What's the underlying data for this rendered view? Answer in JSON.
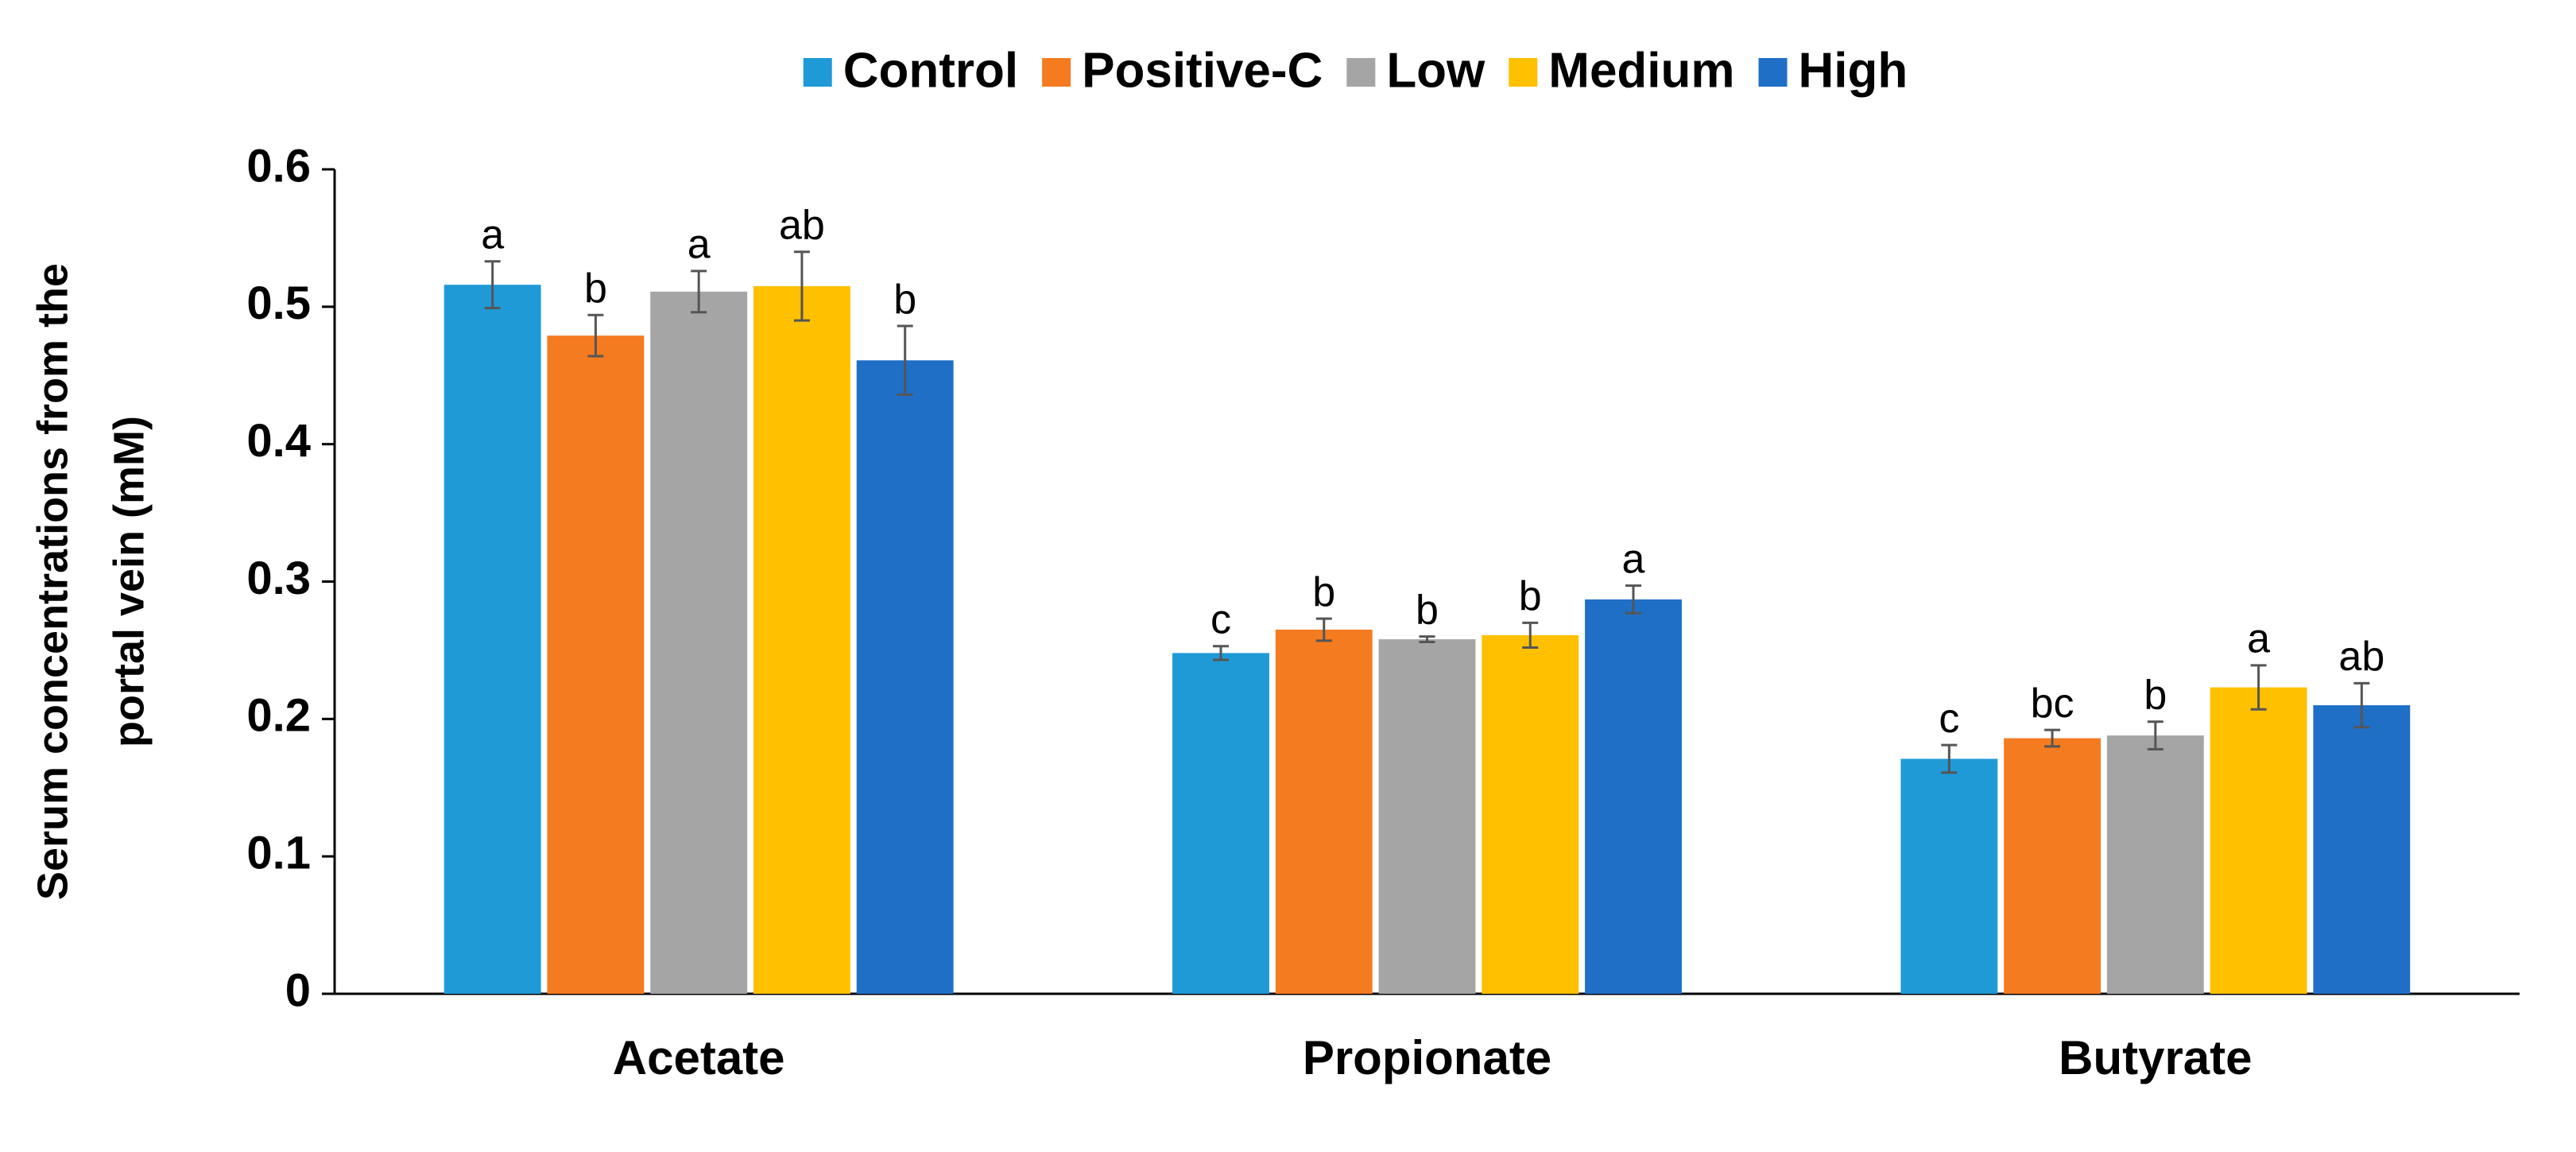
{
  "chart_data": {
    "type": "bar",
    "y_label": [
      "Serum concentrations from the",
      "portal vein (mM)"
    ],
    "categories": [
      "Acetate",
      "Propionate",
      "Butyrate"
    ],
    "series": [
      {
        "name": "Control",
        "color": "#1f9ad6",
        "values": [
          0.516,
          0.248,
          0.171
        ],
        "errors": [
          0.017,
          0.005,
          0.01
        ],
        "labels": [
          "a",
          "c",
          "c"
        ]
      },
      {
        "name": "Positive-C",
        "color": "#f47b20",
        "values": [
          0.479,
          0.265,
          0.186
        ],
        "errors": [
          0.015,
          0.008,
          0.006
        ],
        "labels": [
          "b",
          "b",
          "bc"
        ]
      },
      {
        "name": "Low",
        "color": "#a5a5a5",
        "values": [
          0.511,
          0.258,
          0.188
        ],
        "errors": [
          0.015,
          0.002,
          0.01
        ],
        "labels": [
          "a",
          "b",
          "b"
        ]
      },
      {
        "name": "Medium",
        "color": "#ffc000",
        "values": [
          0.515,
          0.261,
          0.223
        ],
        "errors": [
          0.025,
          0.009,
          0.016
        ],
        "labels": [
          "ab",
          "b",
          "a"
        ]
      },
      {
        "name": "High",
        "color": "#1f6fc6",
        "values": [
          0.461,
          0.287,
          0.21
        ],
        "errors": [
          0.025,
          0.01,
          0.016
        ],
        "labels": [
          "b",
          "a",
          "ab"
        ]
      }
    ],
    "ylim": [
      0,
      0.6
    ],
    "yticks": [
      0,
      0.1,
      0.2,
      0.3,
      0.4,
      0.5,
      0.6
    ],
    "grid": false,
    "legend": "top"
  }
}
